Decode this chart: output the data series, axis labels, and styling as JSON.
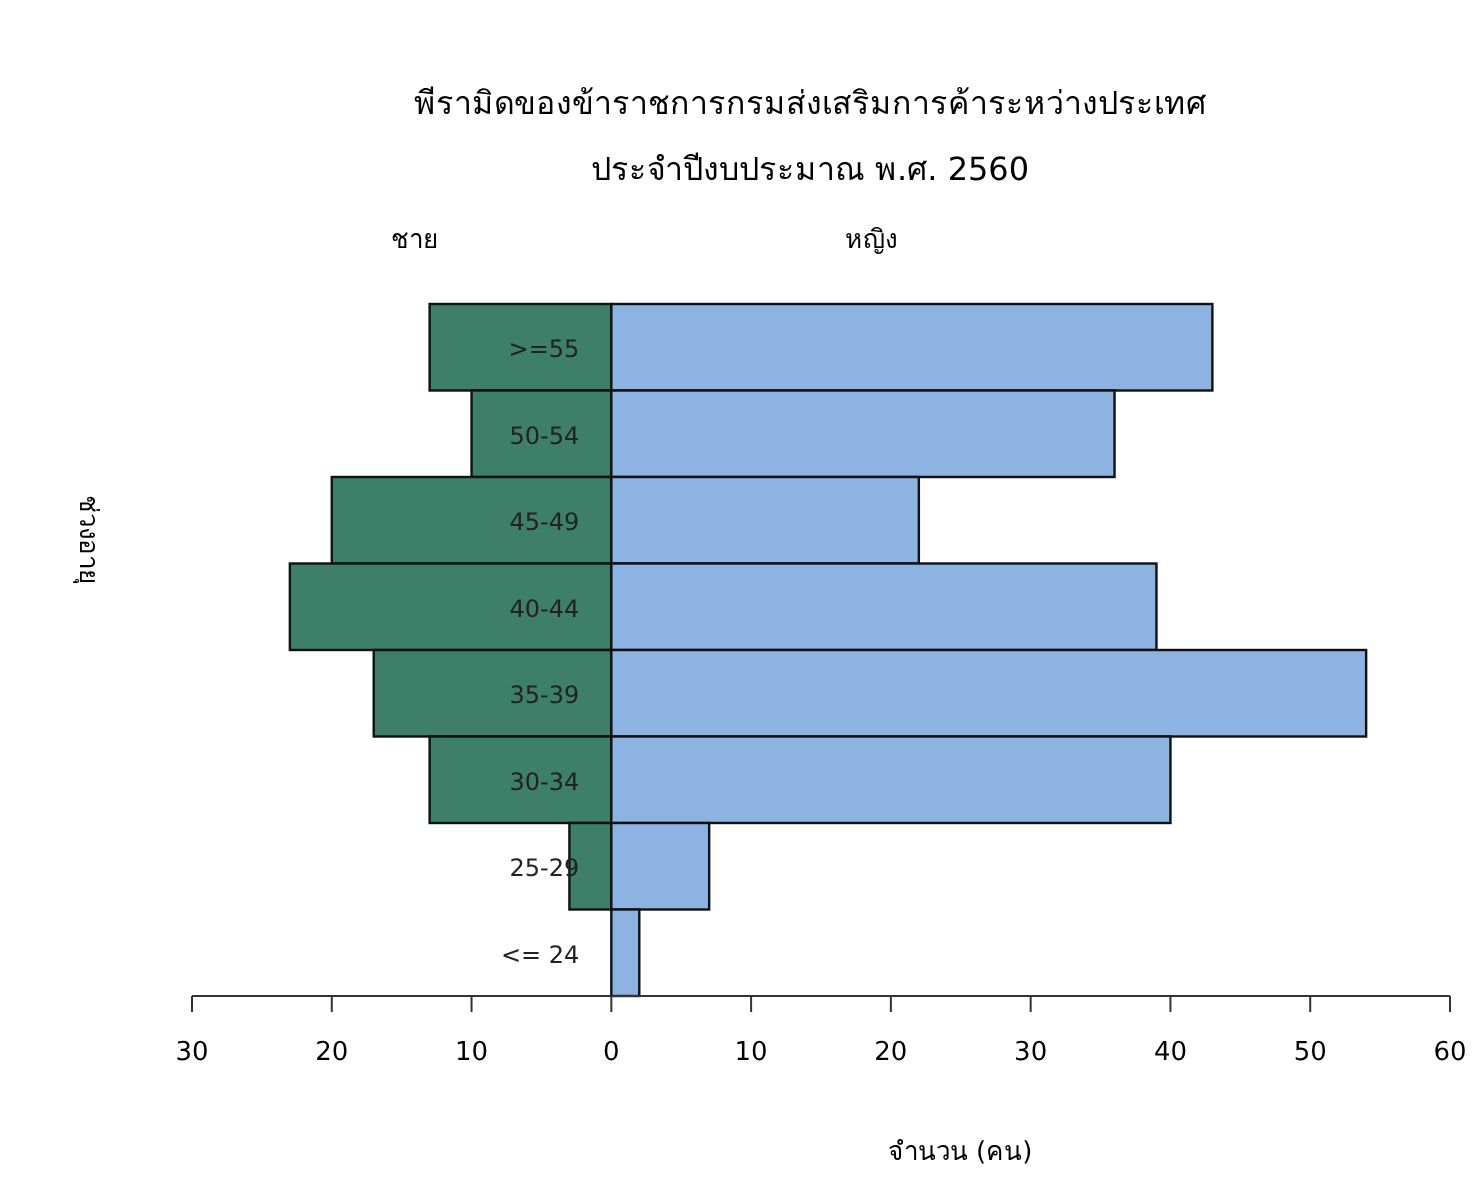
{
  "chart_data": {
    "type": "bar",
    "orientation": "horizontal",
    "stacked": true,
    "title": "พีรามิดของข้าราชการกรมส่งเสริมการค้าระหว่างประเทศ",
    "subtitle": "ประจำปีงบประมาณ พ.ศ. 2560",
    "xlabel": "จำนวน (คน)",
    "ylabel": "ช่วงอายุ",
    "categories": [
      ">=55",
      "50-54",
      "45-49",
      "40-44",
      "35-39",
      "30-34",
      "25-29",
      "<= 24"
    ],
    "series": [
      {
        "name": "ชาย",
        "color": "#3d7f68",
        "values": [
          -13,
          -10,
          -20,
          -23,
          -17,
          -13,
          -3,
          0
        ]
      },
      {
        "name": "หญิง",
        "color": "#8db3e2",
        "values": [
          43,
          36,
          22,
          39,
          54,
          40,
          7,
          2
        ]
      }
    ],
    "xlim": [
      -30,
      60
    ],
    "xticks": [
      {
        "value": -30,
        "label": "30"
      },
      {
        "value": -20,
        "label": "20"
      },
      {
        "value": -10,
        "label": "10"
      },
      0,
      10,
      20,
      30,
      40,
      50,
      60
    ],
    "legend": false
  }
}
